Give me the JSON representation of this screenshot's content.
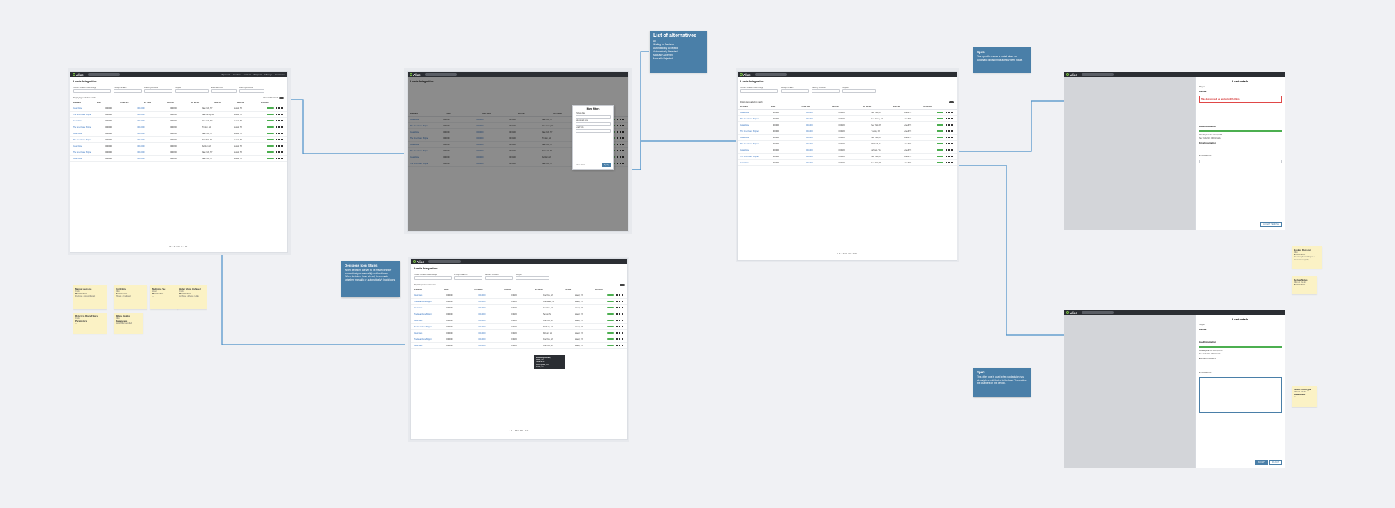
{
  "app": {
    "logo": "Alice",
    "nav": [
      "Shipments",
      "Tenders",
      "Carriers",
      "Shippers",
      "Manage",
      "Username"
    ]
  },
  "page_title": "Loads Integration",
  "filters": [
    "Tender Creation Date Range",
    "Pickup Location",
    "Delivery Location",
    "Shipper",
    "Estimated RR",
    "Filter by Decision"
  ],
  "table": {
    "showing": "Displaying loads that match",
    "show_hidden": "Show hidden loads",
    "columns": [
      "SHIPPER",
      "TYPE",
      "CUST REF",
      "PU DATE",
      "PICKUP",
      "DELIVERY",
      "DELIVERY",
      "EQP",
      "STATUS",
      "CREATED",
      "PROFIT",
      "DECISION",
      "ACTIONS"
    ],
    "rows": [
      [
        "Great Dane",
        "0000000",
        "000-0000",
        "00/00/00",
        "New York, NY",
        "Lowell, TX"
      ],
      [
        "The Great Dane Shipper",
        "0000000",
        "000-0000",
        "00/00/00",
        "New Jersey, NJ",
        "Lowell, TX"
      ],
      [
        "Great Dane",
        "0000000",
        "000-0000",
        "00/00/00",
        "New York, NY",
        "Lowell, TX"
      ],
      [
        "The Great Dane Shipper",
        "0000000",
        "000-0000",
        "00/00/00",
        "Trenton, NJ",
        "Lowell, TX"
      ],
      [
        "Great Dane",
        "0000000",
        "000-0000",
        "00/00/00",
        "New York, NY",
        "Lowell, TX"
      ],
      [
        "The Great Dane Shipper",
        "0000000",
        "000-0000",
        "00/00/00",
        "Elizabeth, NJ",
        "Lowell, TX"
      ],
      [
        "Great Dane",
        "0000000",
        "000-0000",
        "00/00/00",
        "Ashburn, VA",
        "Lowell, TX"
      ],
      [
        "The Great Dane Shipper",
        "0000000",
        "000-0000",
        "00/00/00",
        "New York, NY",
        "Lowell, TX"
      ],
      [
        "Great Dane",
        "0000000",
        "000-0000",
        "00/00/00",
        "New York, NY",
        "Lowell, TX"
      ]
    ],
    "pager": "‹ 1 … 4 5 6 7 8 … 10 ›"
  },
  "notes": {
    "alternatives": {
      "title": "List of alternatives",
      "items": [
        "All",
        "Waiting for Decision",
        "Automatically Accepted",
        "Automatically Rejected",
        "Manually Accepted",
        "Manually Rejected"
      ]
    },
    "spec1": {
      "title": "Spec",
      "text": "This specific drawer is called when an automatic decision has already been made."
    },
    "decisions": {
      "title": "Decisions Icon States",
      "text1": "When decisions are yet to be made (whether automatically or manually): outlined icons",
      "text2": "When decisions have already been made (whether manually or automatically): black icons"
    },
    "spec2": {
      "title": "Spec",
      "text": "This other one is used when no decision has already been attributed to the load. Thus notice the changes on the design."
    }
  },
  "stickies": [
    {
      "k": "Manual decision",
      "v": "Click"
    },
    {
      "k": "Parameters",
      "v": "Decision • Accept/Reject"
    },
    {
      "k": "Unclicking",
      "v": "Click"
    },
    {
      "k": "Parameters",
      "v": "Shown • Unclicked"
    },
    {
      "k": "Multistop Tag",
      "v": "Hover"
    },
    {
      "k": "Parameters",
      "v": "—"
    },
    {
      "k": "Hide / Show Archived",
      "v": "Click"
    },
    {
      "k": "Parameters",
      "v": "Archived • Shown / Hide"
    },
    {
      "k": "Return to Rows Filters",
      "v": "Click"
    },
    {
      "k": "Parameters",
      "v": "—"
    },
    {
      "k": "Filters Applied",
      "v": "Click"
    },
    {
      "k": "Parameters",
      "v": "List of filters applied"
    }
  ],
  "right_stickies": [
    {
      "k": "Booked Decision",
      "v": "Click"
    },
    {
      "k": "Parameters",
      "v": "Decision (Accept/Reject) • Commitment (Y/N)"
    },
    {
      "k": "Review Notes",
      "v": "Click on the link"
    },
    {
      "k": "Parameters",
      "v": "—"
    },
    {
      "k": "Select Load Type",
      "v": "Click on the link"
    },
    {
      "k": "Parameters",
      "v": "—"
    }
  ],
  "popup": {
    "title": "More filters",
    "fields": [
      "Pickup date",
      "Delivery date",
      "Equipment type",
      "Contract Types",
      "Load Size"
    ],
    "clear": "Clear filters",
    "apply": "Apply"
  },
  "tooltip": {
    "title": "Multistop delivery",
    "stops": [
      "Dover, NJ",
      "Newark, NJ",
      "Los Angeles, CA",
      "Bronx, NY"
    ]
  },
  "drawer": {
    "title": "Load details",
    "shipper_label": "Shipper",
    "shipper": "Walmart",
    "error": "This decision will be applied in 00h 00min",
    "sections": [
      "Load Information",
      "Price Information",
      "Commitment"
    ],
    "pickup": "Philadelphia, PA 19103, USA",
    "delivery": "New York, NY 10001, USA",
    "accept": "ACCEPT",
    "reject": "REJECT",
    "accept_pending": "ACCEPT PENDING"
  }
}
